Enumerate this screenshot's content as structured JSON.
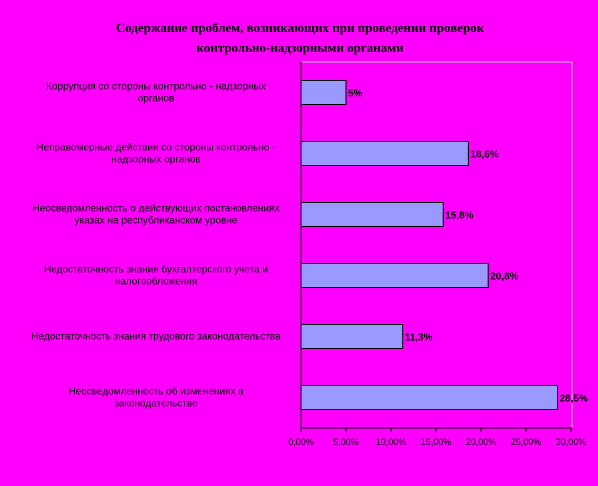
{
  "chart_data": {
    "type": "bar",
    "orientation": "horizontal",
    "title_lines": [
      "Содержание проблем, возникающих при проведении проверок",
      "контрольно-надзорными органами"
    ],
    "categories": [
      [
        "Коррупция со стороны контрольно - надзорных",
        "органов"
      ],
      [
        "Неправомерные действия со стороны контрольно -",
        "надзорных органов"
      ],
      [
        "Неосведомленность о действующих постановлениях",
        "указах на республиканском уровне"
      ],
      [
        "Недостаточность знания бухгалтерского учета и",
        "налогообложения"
      ],
      [
        "Недостаточность знания трудового законодательства"
      ],
      [
        "Неосведомленность об изменениях в",
        "законодательстве"
      ]
    ],
    "values": [
      5,
      18.6,
      15.8,
      20.8,
      11.3,
      28.5
    ],
    "data_labels": [
      "5%",
      "18,6%",
      "15,8%",
      "20,8%",
      "11,3%",
      "28,5%"
    ],
    "x_ticks": [
      "0,00%",
      "5,00%",
      "10,00%",
      "15,00%",
      "20,00%",
      "25,00%",
      "30,00%"
    ],
    "xlim": [
      0,
      30
    ],
    "grid": false,
    "colors": {
      "background": "#ff00ff",
      "bar_fill": "#9999ff",
      "bar_stroke": "#000000",
      "axis": "#000000",
      "plot_border": "#c0c0c0"
    }
  }
}
